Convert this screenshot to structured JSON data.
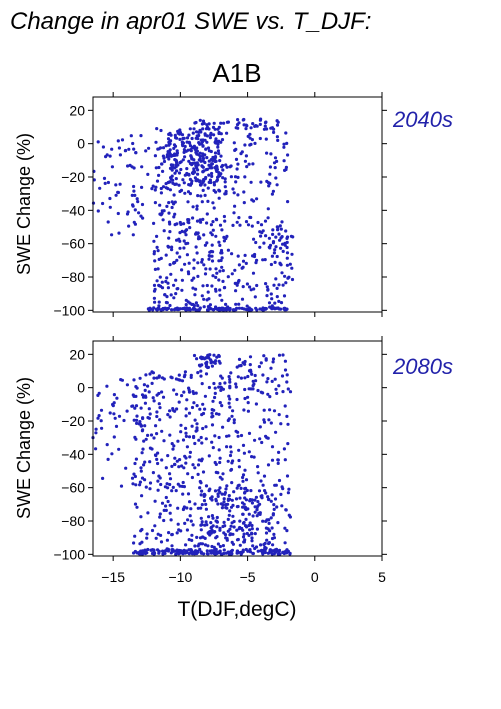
{
  "figure_title": "Change in apr01 SWE vs. T_DJF:",
  "panel_title": "A1B",
  "colors": {
    "points": "#2222bb",
    "period_label": "#2222aa",
    "axes": "#000000"
  },
  "chart_data": [
    {
      "type": "scatter",
      "period": "2040s",
      "ylabel": "SWE Change (%)",
      "xlabel": "",
      "xlim": [
        -16.5,
        5
      ],
      "ylim": [
        -101,
        28
      ],
      "x_ticks": [
        -15,
        -10,
        -5,
        0,
        5
      ],
      "y_ticks": [
        -100,
        -80,
        -60,
        -40,
        -20,
        0,
        20
      ],
      "y_tick_labels": [
        "−100",
        "−80",
        "−60",
        "−40",
        "−20",
        "0",
        "20"
      ],
      "clusters": [
        {
          "x_range": [
            -16.5,
            -12.0
          ],
          "y_range": [
            -55,
            5
          ],
          "n": 70
        },
        {
          "x_range": [
            -12.0,
            -6.5
          ],
          "y_range": [
            -100,
            10
          ],
          "n": 380
        },
        {
          "x_range": [
            -11.0,
            -7.0
          ],
          "y_range": [
            -25,
            8
          ],
          "n": 180
        },
        {
          "x_range": [
            -6.5,
            -2.0
          ],
          "y_range": [
            -100,
            15
          ],
          "n": 190
        },
        {
          "x_range": [
            -3.2,
            -1.6
          ],
          "y_range": [
            -85,
            -50
          ],
          "n": 30
        },
        {
          "x_range": [
            -12.5,
            -2.0
          ],
          "y_range": [
            -100,
            -98.5
          ],
          "n": 120
        },
        {
          "x_range": [
            -9.0,
            -3.0
          ],
          "y_range": [
            8,
            15
          ],
          "n": 40
        }
      ]
    },
    {
      "type": "scatter",
      "period": "2080s",
      "ylabel": "SWE Change (%)",
      "xlabel": "T(DJF,degC)",
      "xlim": [
        -16.5,
        5
      ],
      "ylim": [
        -101,
        28
      ],
      "x_ticks": [
        -15,
        -10,
        -5,
        0,
        5
      ],
      "x_tick_labels": [
        "−15",
        "−10",
        "−5",
        "0",
        "5"
      ],
      "y_ticks": [
        -100,
        -80,
        -60,
        -40,
        -20,
        0,
        20
      ],
      "y_tick_labels": [
        "−100",
        "−80",
        "−60",
        "−40",
        "−20",
        "0",
        "20"
      ],
      "clusters": [
        {
          "x_range": [
            -16.5,
            -12.5
          ],
          "y_range": [
            -60,
            5
          ],
          "n": 50
        },
        {
          "x_range": [
            -13.5,
            -6.0
          ],
          "y_range": [
            -100,
            10
          ],
          "n": 420
        },
        {
          "x_range": [
            -9.0,
            -7.0
          ],
          "y_range": [
            12,
            20
          ],
          "n": 35
        },
        {
          "x_range": [
            -6.0,
            -1.8
          ],
          "y_range": [
            -100,
            20
          ],
          "n": 200
        },
        {
          "x_range": [
            -13.5,
            -1.8
          ],
          "y_range": [
            -100,
            -97
          ],
          "n": 170
        },
        {
          "x_range": [
            -8.5,
            -3.0
          ],
          "y_range": [
            -95,
            -60
          ],
          "n": 120
        }
      ]
    }
  ]
}
